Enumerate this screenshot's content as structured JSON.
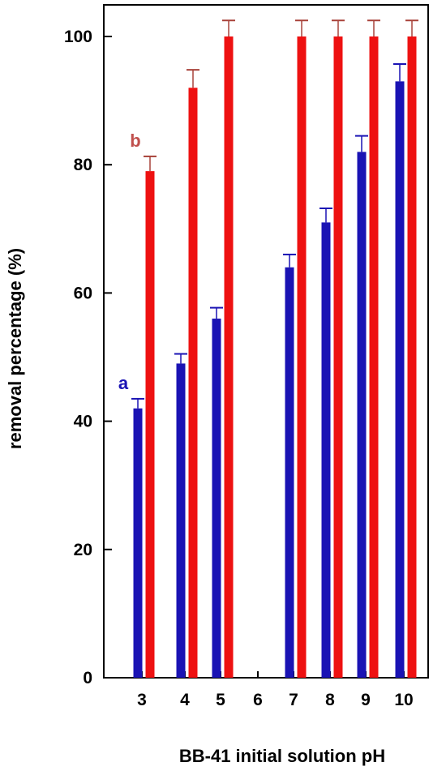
{
  "chart_data": {
    "type": "bar",
    "xlabel": "BB-41 initial solution pH",
    "ylabel": "removal percentage (%)",
    "ylim": [
      0,
      100
    ],
    "yticks": [
      0,
      20,
      40,
      60,
      80,
      100
    ],
    "categories": [
      "3",
      "4",
      "5",
      "6",
      "7",
      "8",
      "9",
      "10"
    ],
    "grid": false,
    "series": [
      {
        "name": "a",
        "color": "#1a13b4",
        "values": [
          42,
          49,
          56,
          null,
          64,
          71,
          82,
          93
        ],
        "errors": [
          1.5,
          1.5,
          1.7,
          null,
          2.0,
          2.2,
          2.5,
          2.7
        ]
      },
      {
        "name": "b",
        "color": "#ee1111",
        "error_color": "#a8423a",
        "values": [
          79,
          92,
          100,
          null,
          100,
          100,
          100,
          100
        ],
        "errors": [
          2.3,
          2.8,
          2.5,
          null,
          2.5,
          2.5,
          2.5,
          2.5
        ]
      }
    ],
    "annotations": [
      {
        "text": "a",
        "color": "#1a13b4",
        "series": 0,
        "category": "3"
      },
      {
        "text": "b",
        "color": "#c0504d",
        "series": 1,
        "category": "3"
      }
    ]
  }
}
